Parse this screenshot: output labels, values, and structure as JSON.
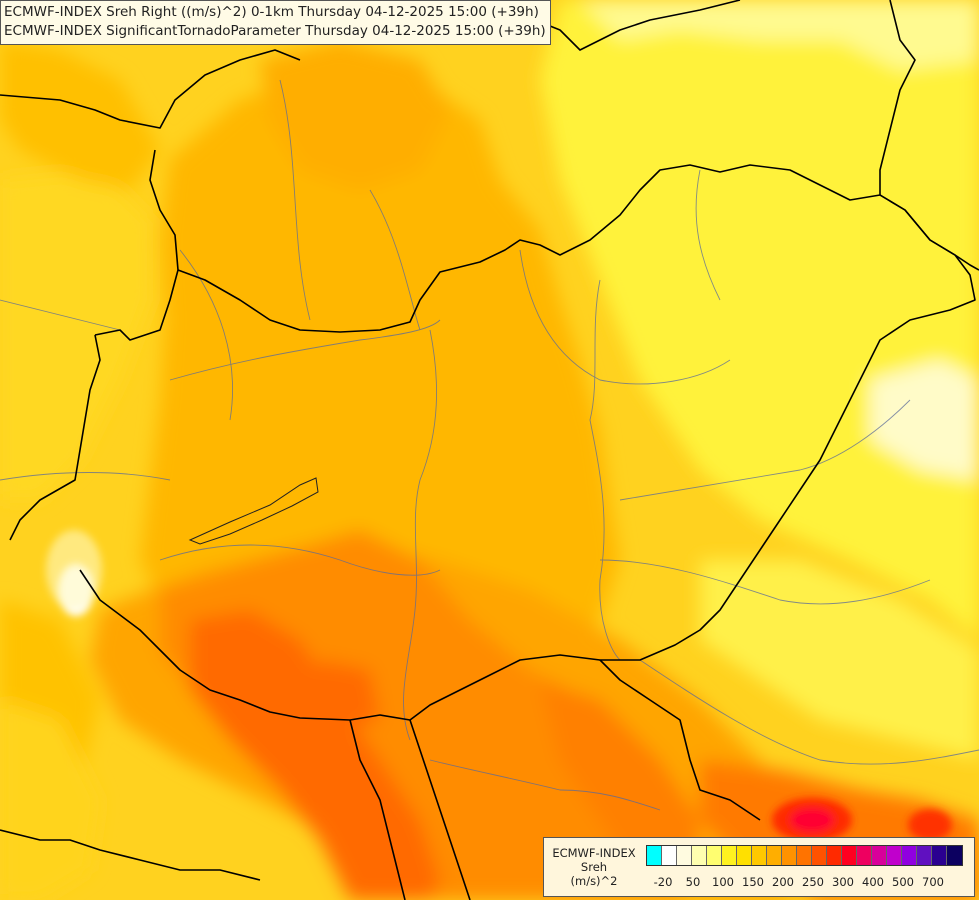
{
  "header": {
    "line1": "ECMWF-INDEX Sreh Right ((m/s)^2) 0-1km Thursday 04-12-2025 15:00 (+39h)",
    "line2": "ECMWF-INDEX SignificantTornadoParameter Thursday 04-12-2025 15:00 (+39h)"
  },
  "legend": {
    "title_line1": "ECMWF-INDEX",
    "title_line2": "Sreh",
    "title_line3": "(m/s)^2",
    "colors": [
      "#00ffff",
      "#ffffff",
      "#fffbe0",
      "#ffffb0",
      "#fffe70",
      "#fff220",
      "#ffe000",
      "#ffc800",
      "#ffae00",
      "#ff9200",
      "#ff7300",
      "#ff5200",
      "#ff2a00",
      "#ff0020",
      "#ee0060",
      "#d8009a",
      "#c000cc",
      "#9000e0",
      "#6010c0",
      "#2a0090",
      "#0c0060"
    ],
    "tick_labels": [
      "-20",
      "50",
      "100",
      "150",
      "200",
      "250",
      "300",
      "400",
      "500",
      "700"
    ],
    "tick_index": [
      1,
      3,
      5,
      7,
      9,
      11,
      13,
      15,
      17,
      19
    ]
  },
  "map": {
    "base_color": "#ffd21f"
  }
}
